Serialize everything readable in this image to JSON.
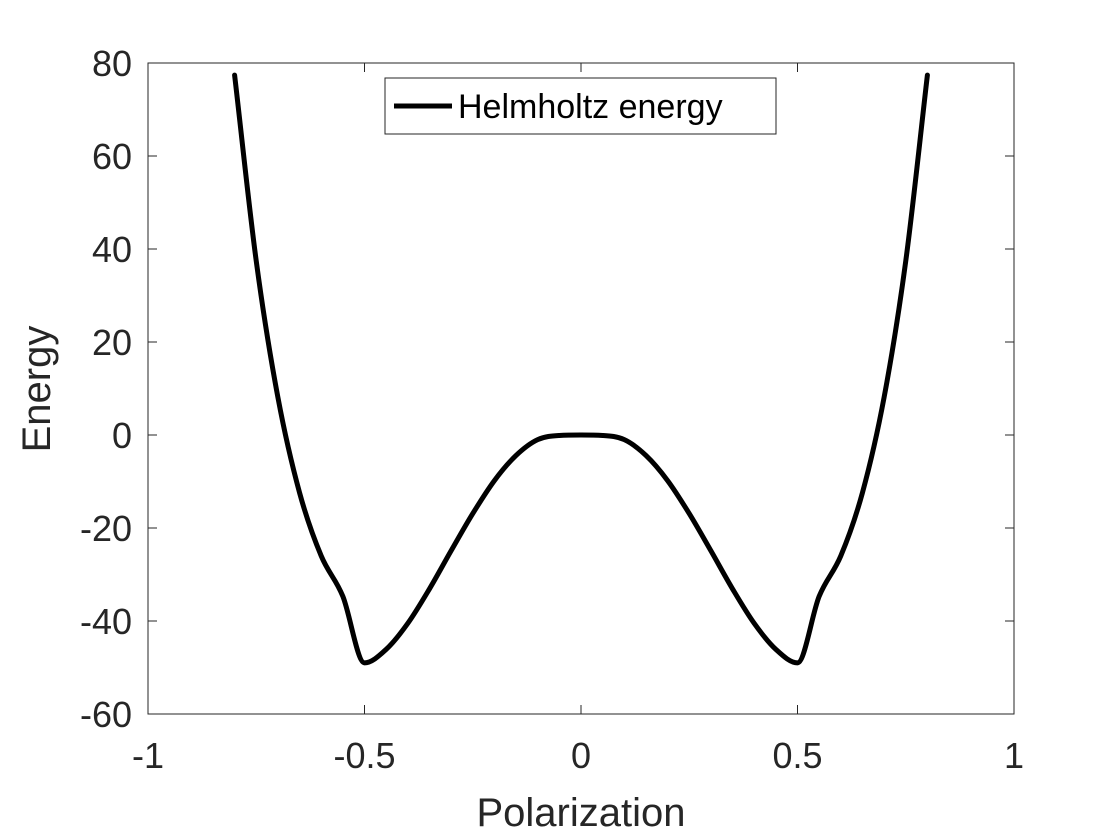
{
  "chart_data": {
    "type": "line",
    "title": "",
    "xlabel": "Polarization",
    "ylabel": "Energy",
    "xlim": [
      -1,
      1
    ],
    "ylim": [
      -60,
      80
    ],
    "x_ticks": [
      -1,
      -0.5,
      0,
      0.5,
      1
    ],
    "x_tick_labels": [
      "-1",
      "-0.5",
      "0",
      "0.5",
      "1"
    ],
    "y_ticks": [
      -60,
      -40,
      -20,
      0,
      20,
      40,
      60,
      80
    ],
    "y_tick_labels": [
      "-60",
      "-40",
      "-20",
      "0",
      "20",
      "40",
      "60",
      "80"
    ],
    "grid": false,
    "box": true,
    "legend_position": "top-center",
    "series": [
      {
        "name": "Helmholtz energy",
        "color": "#000000",
        "x": [
          -0.8,
          -0.75,
          -0.7,
          -0.65,
          -0.6,
          -0.55,
          -0.5,
          -0.45,
          -0.4,
          -0.35,
          -0.3,
          -0.25,
          -0.2,
          -0.15,
          -0.1,
          -0.05,
          0,
          0.05,
          0.1,
          0.15,
          0.2,
          0.25,
          0.3,
          0.35,
          0.4,
          0.45,
          0.5,
          0.55,
          0.6,
          0.65,
          0.7,
          0.75,
          0.8
        ],
        "y": [
          77.4,
          37.4,
          8.1,
          -12.4,
          -26.0,
          -34.7,
          -49.0,
          -46.1,
          -40.5,
          -33.1,
          -24.9,
          -16.9,
          -9.8,
          -4.4,
          -1.0,
          -0.1,
          0,
          -0.1,
          -1.0,
          -4.4,
          -9.8,
          -16.9,
          -24.9,
          -33.1,
          -40.5,
          -46.1,
          -49.0,
          -34.7,
          -26.0,
          -12.4,
          8.1,
          37.4,
          77.4
        ]
      }
    ]
  }
}
